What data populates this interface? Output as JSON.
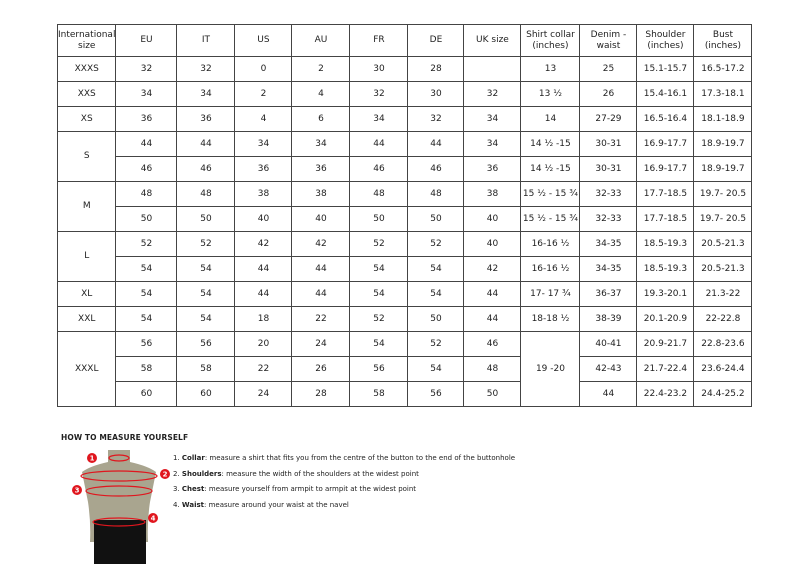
{
  "table": {
    "headers": [
      "International size",
      "EU",
      "IT",
      "US",
      "AU",
      "FR",
      "DE",
      "UK size",
      "Shirt collar (inches)",
      "Denim - waist",
      "Shoulder (inches)",
      "Bust (inches)"
    ],
    "rows": [
      [
        "XXXS",
        "32",
        "32",
        "0",
        "2",
        "30",
        "28",
        "",
        "13",
        "25",
        "15.1-15.7",
        "16.5-17.2"
      ],
      [
        "XXS",
        "34",
        "34",
        "2",
        "4",
        "32",
        "30",
        "32",
        "13 ½",
        "26",
        "15.4-16.1",
        "17.3-18.1"
      ],
      [
        "XS",
        "36",
        "36",
        "4",
        "6",
        "34",
        "32",
        "34",
        "14",
        "27-29",
        "16.5-16.4",
        "18.1-18.9"
      ],
      [
        "S",
        "44",
        "44",
        "34",
        "34",
        "44",
        "44",
        "34",
        "14 ½ -15",
        "30-31",
        "16.9-17.7",
        "18.9-19.7"
      ],
      [
        null,
        "46",
        "46",
        "36",
        "36",
        "46",
        "46",
        "36",
        "14 ½ -15",
        "30-31",
        "16.9-17.7",
        "18.9-19.7"
      ],
      [
        "M",
        "48",
        "48",
        "38",
        "38",
        "48",
        "48",
        "38",
        "15 ½ - 15 ¾",
        "32-33",
        "17.7-18.5",
        "19.7- 20.5"
      ],
      [
        null,
        "50",
        "50",
        "40",
        "40",
        "50",
        "50",
        "40",
        "15 ½ - 15 ¾",
        "32-33",
        "17.7-18.5",
        "19.7- 20.5"
      ],
      [
        "L",
        "52",
        "52",
        "42",
        "42",
        "52",
        "52",
        "40",
        "16-16 ½",
        "34-35",
        "18.5-19.3",
        "20.5-21.3"
      ],
      [
        null,
        "54",
        "54",
        "44",
        "44",
        "54",
        "54",
        "42",
        "16-16 ½",
        "34-35",
        "18.5-19.3",
        "20.5-21.3"
      ],
      [
        "XL",
        "54",
        "54",
        "44",
        "44",
        "54",
        "54",
        "44",
        "17- 17 ¾",
        "36-37",
        "19.3-20.1",
        "21.3-22"
      ],
      [
        "XXL",
        "54",
        "54",
        "18",
        "22",
        "52",
        "50",
        "44",
        "18-18 ½",
        "38-39",
        "20.1-20.9",
        "22-22.8"
      ],
      [
        "XXXL",
        "56",
        "56",
        "20",
        "24",
        "54",
        "52",
        "46",
        "19 -20",
        "40-41",
        "20.9-21.7",
        "22.8-23.6"
      ],
      [
        null,
        "58",
        "58",
        "22",
        "26",
        "56",
        "54",
        "48",
        null,
        "42-43",
        "21.7-22.4",
        "23.6-24.4"
      ],
      [
        null,
        "60",
        "60",
        "24",
        "28",
        "58",
        "56",
        "50",
        null,
        "44",
        "22.4-23.2",
        "24.4-25.2"
      ]
    ]
  },
  "measure": {
    "title": "HOW TO MEASURE YOURSELF",
    "steps": [
      {
        "num": "1.",
        "term": "Collar",
        "text": ": measure a shirt that fits you from the centre of the button to the end of the buttonhole"
      },
      {
        "num": "2.",
        "term": "Shoulders",
        "text": ": measure the width of the shoulders at the widest point"
      },
      {
        "num": "3.",
        "term": "Chest",
        "text": ": measure yourself from armpit to armpit at the widest point"
      },
      {
        "num": "4.",
        "term": "Waist",
        "text": ": measure around your waist at the navel"
      }
    ],
    "markers": [
      "1",
      "2",
      "3",
      "4"
    ],
    "marker_color": "#e0161e"
  }
}
